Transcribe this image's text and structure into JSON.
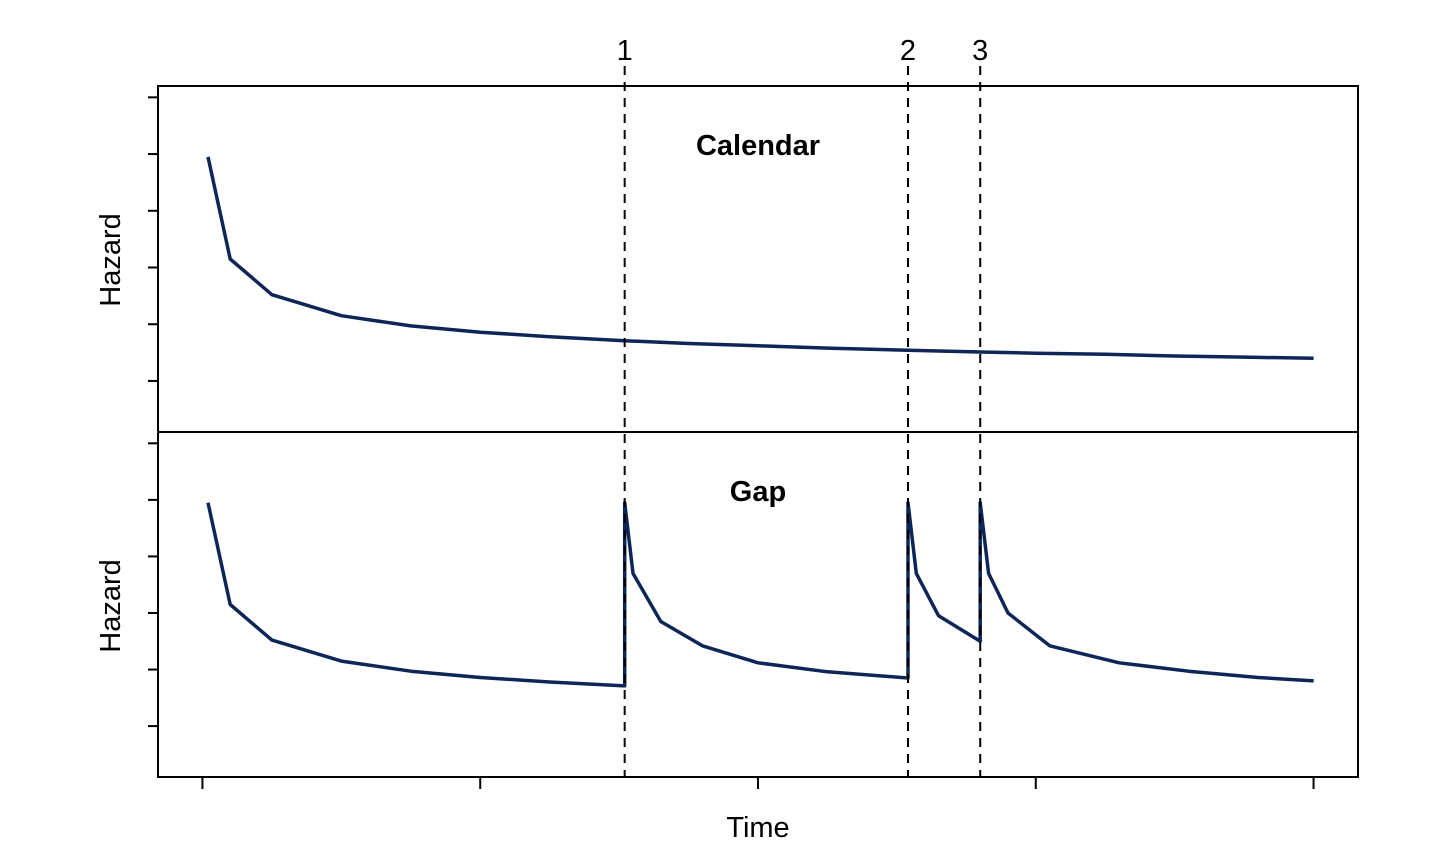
{
  "chart_data": [
    {
      "type": "line",
      "title": "Calendar",
      "xlabel": "",
      "ylabel": "Hazard",
      "xlim": [
        -0.16,
        4.16
      ],
      "ylim": [
        0.1,
        6.2
      ],
      "grid": false,
      "color": "#0d2657",
      "event_times": [
        1.52,
        2.54,
        2.8
      ],
      "event_labels": [
        "1",
        "2",
        "3"
      ],
      "series": [
        {
          "x": [
            0.02,
            0.1,
            0.25,
            0.5,
            0.75,
            1.0,
            1.25,
            1.52,
            1.75,
            2.0,
            2.25,
            2.54,
            2.8,
            3.0,
            3.25,
            3.5,
            3.75,
            4.0
          ],
          "values": [
            4.95,
            3.15,
            2.52,
            2.15,
            1.97,
            1.86,
            1.78,
            1.71,
            1.66,
            1.62,
            1.58,
            1.54,
            1.51,
            1.49,
            1.47,
            1.44,
            1.42,
            1.4
          ]
        }
      ]
    },
    {
      "type": "line",
      "title": "Gap",
      "xlabel": "Time",
      "ylabel": "Hazard",
      "xlim": [
        -0.16,
        4.16
      ],
      "ylim": [
        0.1,
        6.2
      ],
      "grid": false,
      "color": "#0d2657",
      "event_times": [
        1.52,
        2.54,
        2.8
      ],
      "series": [
        {
          "x": [
            0.02,
            0.1,
            0.25,
            0.5,
            0.75,
            1.0,
            1.25,
            1.52,
            1.52,
            1.55,
            1.65,
            1.8,
            2.0,
            2.25,
            2.54,
            2.54,
            2.57,
            2.65,
            2.8,
            2.8,
            2.83,
            2.9,
            3.05,
            3.3,
            3.55,
            3.8,
            4.0
          ],
          "values": [
            4.95,
            3.15,
            2.52,
            2.15,
            1.97,
            1.86,
            1.78,
            1.71,
            4.95,
            3.7,
            2.85,
            2.42,
            2.12,
            1.96,
            1.85,
            4.95,
            3.7,
            2.95,
            2.5,
            4.95,
            3.7,
            3.0,
            2.42,
            2.12,
            1.97,
            1.86,
            1.8
          ]
        }
      ]
    }
  ]
}
